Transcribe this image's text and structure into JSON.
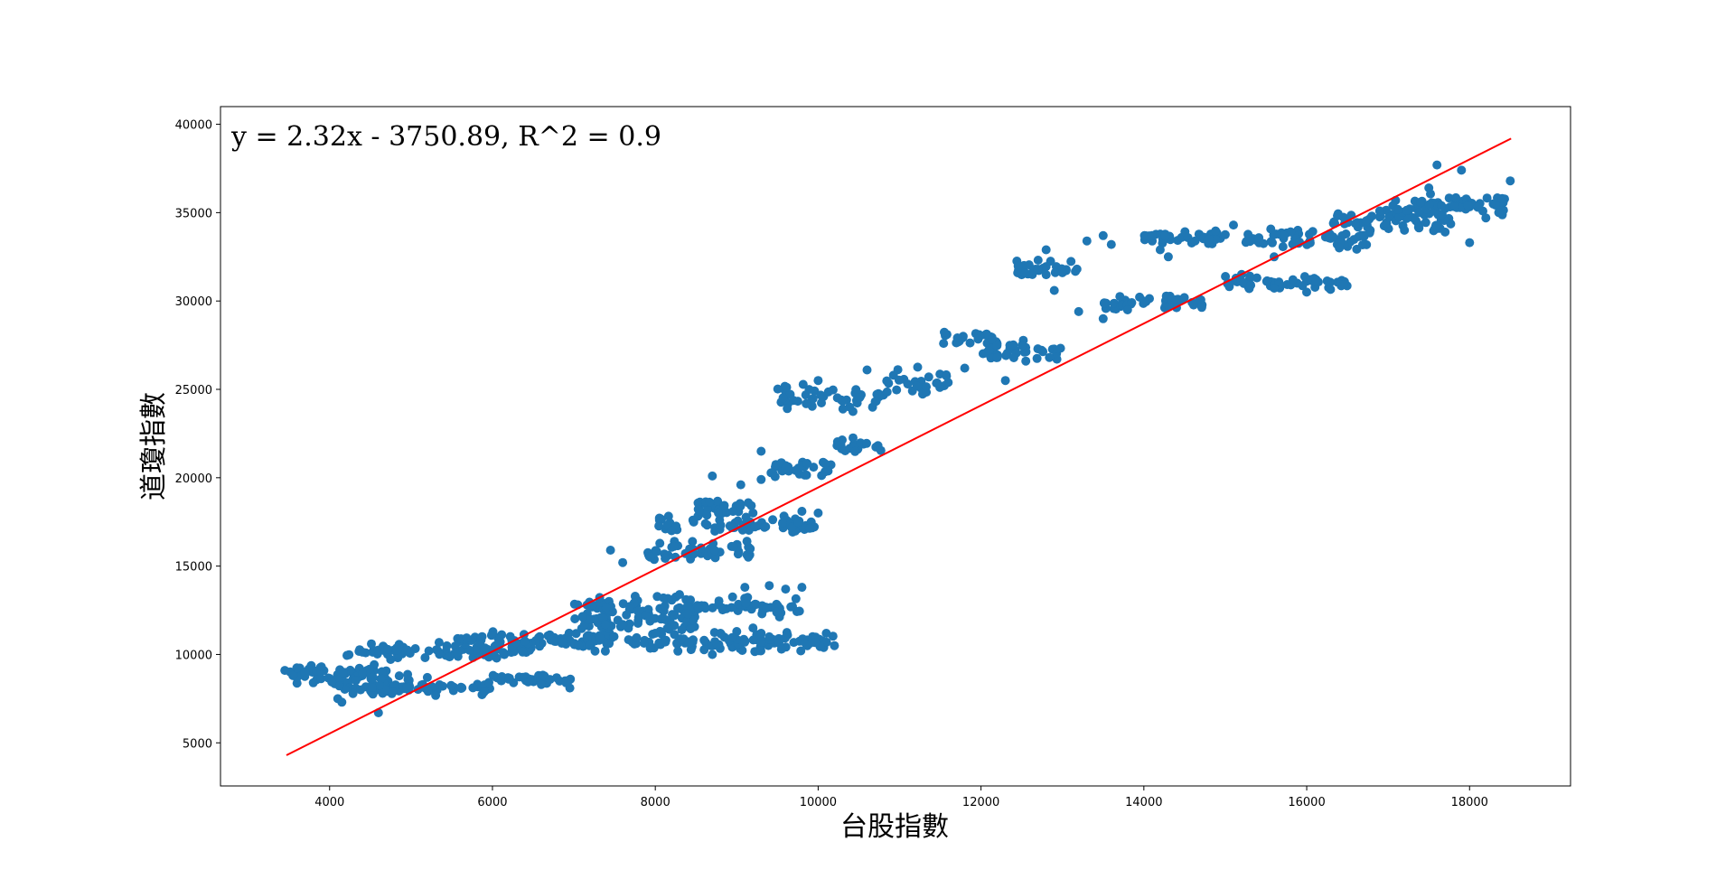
{
  "chart_data": {
    "type": "scatter",
    "xlabel": "台股指數",
    "ylabel": "道瓊指數",
    "annotation": "y = 2.32x - 3750.89, R^2 = 0.9",
    "xlim": [
      2660,
      19240
    ],
    "ylim": [
      2560,
      41000
    ],
    "x_ticks": [
      4000,
      6000,
      8000,
      10000,
      12000,
      14000,
      16000,
      18000
    ],
    "y_ticks": [
      5000,
      10000,
      15000,
      20000,
      25000,
      30000,
      35000,
      40000
    ],
    "grid": false,
    "legend": "none",
    "colors": {
      "points": "#1f77b4",
      "fit_line": "#ff0000",
      "frame": "#000000"
    },
    "fit": {
      "slope": 2.32,
      "intercept": -3750.89,
      "r2": 0.9,
      "x_range": [
        3470,
        18510
      ]
    },
    "point_clusters": [
      {
        "x_range": [
          3450,
          5000
        ],
        "y_center": 8900,
        "y_spread": 700
      },
      {
        "x_range": [
          4000,
          5000
        ],
        "y_center": 8200,
        "y_spread": 600
      },
      {
        "x_range": [
          4200,
          6500
        ],
        "y_center": 10200,
        "y_spread": 600
      },
      {
        "x_range": [
          4500,
          6000
        ],
        "y_center": 8100,
        "y_spread": 500
      },
      {
        "x_range": [
          6000,
          7000
        ],
        "y_center": 8600,
        "y_spread": 400
      },
      {
        "x_range": [
          5500,
          7500
        ],
        "y_center": 10900,
        "y_spread": 500
      },
      {
        "x_range": [
          6800,
          10200
        ],
        "y_center": 10700,
        "y_spread": 700
      },
      {
        "x_range": [
          7000,
          9800
        ],
        "y_center": 12700,
        "y_spread": 800
      },
      {
        "x_range": [
          7000,
          8500
        ],
        "y_center": 11800,
        "y_spread": 800
      },
      {
        "x_range": [
          8000,
          10000
        ],
        "y_center": 17300,
        "y_spread": 700
      },
      {
        "x_range": [
          7900,
          9200
        ],
        "y_center": 15800,
        "y_spread": 900
      },
      {
        "x_range": [
          8400,
          9200
        ],
        "y_center": 18300,
        "y_spread": 700
      },
      {
        "x_range": [
          9400,
          10200
        ],
        "y_center": 20500,
        "y_spread": 700
      },
      {
        "x_range": [
          10200,
          10800
        ],
        "y_center": 21800,
        "y_spread": 700
      },
      {
        "x_range": [
          9500,
          10800
        ],
        "y_center": 24500,
        "y_spread": 1100
      },
      {
        "x_range": [
          10800,
          11600
        ],
        "y_center": 25300,
        "y_spread": 1100
      },
      {
        "x_range": [
          11500,
          12200
        ],
        "y_center": 27900,
        "y_spread": 900
      },
      {
        "x_range": [
          12000,
          13000
        ],
        "y_center": 27100,
        "y_spread": 800
      },
      {
        "x_range": [
          12400,
          13200
        ],
        "y_center": 31900,
        "y_spread": 800
      },
      {
        "x_range": [
          13500,
          14800
        ],
        "y_center": 29900,
        "y_spread": 500
      },
      {
        "x_range": [
          14000,
          15000
        ],
        "y_center": 33600,
        "y_spread": 600
      },
      {
        "x_range": [
          15000,
          16500
        ],
        "y_center": 31100,
        "y_spread": 700
      },
      {
        "x_range": [
          15200,
          16800
        ],
        "y_center": 33500,
        "y_spread": 800
      },
      {
        "x_range": [
          16300,
          17800
        ],
        "y_center": 34500,
        "y_spread": 1000
      },
      {
        "x_range": [
          17000,
          18000
        ],
        "y_center": 35400,
        "y_spread": 900
      },
      {
        "x_range": [
          17800,
          18500
        ],
        "y_center": 35500,
        "y_spread": 800
      }
    ],
    "points": [
      [
        3450,
        9100
      ],
      [
        3600,
        8700
      ],
      [
        3700,
        9000
      ],
      [
        3800,
        8400
      ],
      [
        3550,
        8800
      ],
      [
        3900,
        9300
      ],
      [
        4100,
        7500
      ],
      [
        4150,
        7300
      ],
      [
        9200,
        18000
      ],
      [
        9800,
        18100
      ],
      [
        10000,
        18000
      ],
      [
        9200,
        11500
      ],
      [
        9300,
        10700
      ],
      [
        9400,
        11000
      ],
      [
        10100,
        11200
      ],
      [
        10200,
        10500
      ],
      [
        9550,
        10300
      ],
      [
        9850,
        10600
      ],
      [
        9100,
        13800
      ],
      [
        9400,
        13900
      ],
      [
        9600,
        13700
      ],
      [
        9800,
        13800
      ],
      [
        8800,
        11200
      ],
      [
        8600,
        10800
      ],
      [
        8700,
        10000
      ],
      [
        7450,
        15900
      ],
      [
        7600,
        15200
      ],
      [
        8200,
        17000
      ],
      [
        8700,
        20100
      ],
      [
        9300,
        21500
      ],
      [
        9300,
        19900
      ],
      [
        9050,
        19600
      ],
      [
        10700,
        24300
      ],
      [
        10000,
        25500
      ],
      [
        10600,
        26100
      ],
      [
        11800,
        26200
      ],
      [
        12200,
        26800
      ],
      [
        12100,
        27200
      ],
      [
        12550,
        26600
      ],
      [
        12300,
        25500
      ],
      [
        12700,
        31800
      ],
      [
        12800,
        32900
      ],
      [
        12900,
        30600
      ],
      [
        13000,
        31600
      ],
      [
        13200,
        29400
      ],
      [
        13300,
        33400
      ],
      [
        13500,
        33700
      ],
      [
        13600,
        33200
      ],
      [
        13500,
        29000
      ],
      [
        13800,
        29500
      ],
      [
        14100,
        33700
      ],
      [
        14200,
        32900
      ],
      [
        14300,
        32500
      ],
      [
        14000,
        30000
      ],
      [
        14800,
        33500
      ],
      [
        15100,
        34300
      ],
      [
        15200,
        31500
      ],
      [
        15600,
        32500
      ],
      [
        16000,
        30500
      ],
      [
        16400,
        33000
      ],
      [
        16700,
        33700
      ],
      [
        16800,
        34800
      ],
      [
        17200,
        34000
      ],
      [
        17500,
        36400
      ],
      [
        17600,
        37700
      ],
      [
        17900,
        37400
      ],
      [
        18100,
        35300
      ],
      [
        18400,
        35800
      ],
      [
        18500,
        36800
      ],
      [
        18000,
        33300
      ],
      [
        17700,
        33900
      ],
      [
        18200,
        34700
      ],
      [
        7600,
        11700
      ],
      [
        8000,
        11200
      ],
      [
        8100,
        13200
      ],
      [
        8400,
        12300
      ],
      [
        9000,
        11300
      ],
      [
        9300,
        11200
      ],
      [
        6200,
        8600
      ],
      [
        6600,
        8300
      ],
      [
        6950,
        8100
      ],
      [
        5900,
        7900
      ],
      [
        5200,
        8700
      ],
      [
        4600,
        6700
      ]
    ]
  }
}
